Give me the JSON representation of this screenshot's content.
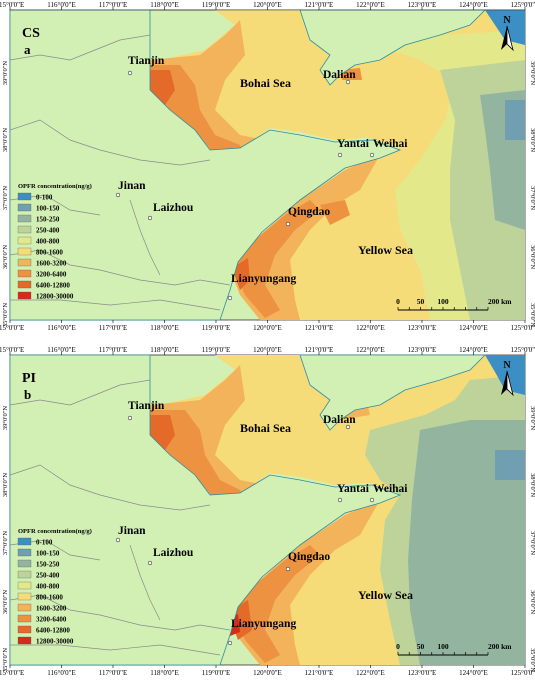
{
  "panels": [
    {
      "id": "a",
      "corner_label": "CS",
      "panel_letter": "a",
      "places": [
        "Tianjin",
        "Dalian",
        "Yantai",
        "Weihai",
        "Jinan",
        "Laizhou",
        "Qingdao",
        "Lianyungang"
      ],
      "seas": [
        "Bohai Sea",
        "Yellow Sea"
      ]
    },
    {
      "id": "b",
      "corner_label": "PI",
      "panel_letter": "b",
      "places": [
        "Tianjin",
        "Dalian",
        "Yantai",
        "Weihai",
        "Jinan",
        "Laizhou",
        "Qingdao",
        "Lianyungang"
      ],
      "seas": [
        "Bohai Sea",
        "Yellow Sea"
      ]
    }
  ],
  "lon_labels": [
    "115°0'0\"E",
    "116°0'0\"E",
    "117°0'0\"E",
    "118°0'0\"E",
    "119°0'0\"E",
    "120°0'0\"E",
    "121°0'0\"E",
    "122°0'0\"E",
    "123°0'0\"E",
    "124°0'0\"E",
    "125°0'0\"E"
  ],
  "lat_labels": [
    "39°0'0\"N",
    "38°0'0\"N",
    "37°0'0\"N",
    "36°0'0\"N",
    "35°0'0\"N"
  ],
  "legend": {
    "title": "OPFR concentration(ng/g)",
    "classes": [
      {
        "label": "0-100",
        "color": "#3b8fc4"
      },
      {
        "label": "100-150",
        "color": "#6f9fb0"
      },
      {
        "label": "150-250",
        "color": "#93b59f"
      },
      {
        "label": "250-400",
        "color": "#bdd39a"
      },
      {
        "label": "400-800",
        "color": "#e3e88a"
      },
      {
        "label": "800-1600",
        "color": "#f6dc78"
      },
      {
        "label": "1600-3200",
        "color": "#f3b35a"
      },
      {
        "label": "3200-6400",
        "color": "#ed9240"
      },
      {
        "label": "6400-12800",
        "color": "#e36a28"
      },
      {
        "label": "12800-30000",
        "color": "#d42b1c"
      }
    ]
  },
  "scale_bar": {
    "ticks": [
      "0",
      "50",
      "100",
      "200"
    ],
    "unit": "km"
  },
  "north_arrow": "N",
  "colors": {
    "land": "#d2f0b4",
    "boundary": "#8a8a8a",
    "coast": "#2d8ca0"
  }
}
